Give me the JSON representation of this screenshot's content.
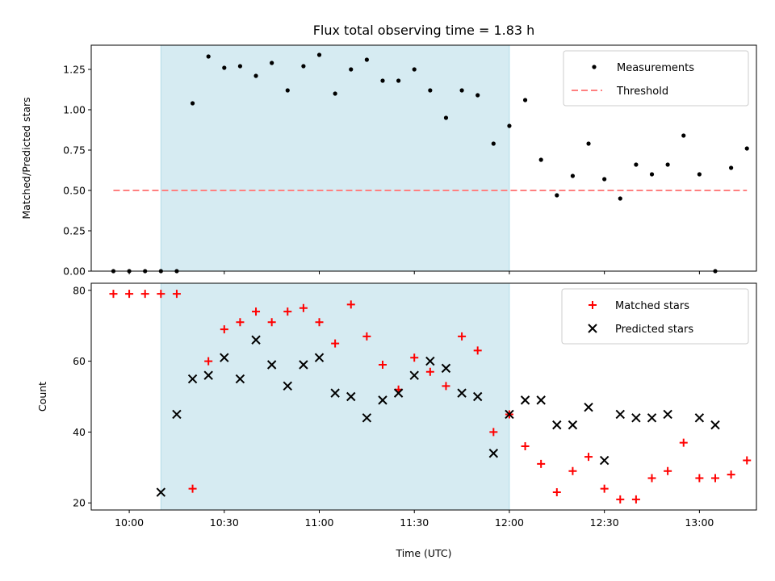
{
  "chart_data": [
    {
      "type": "scatter",
      "title": "Flux total observing time = 1.83 h",
      "ylabel": "Matched/Predicted stars",
      "xlabel": "",
      "xlim": [
        "09:48",
        "13:18"
      ],
      "ylim": [
        0,
        1.4
      ],
      "x_ticks": [
        "10:00",
        "10:30",
        "11:00",
        "11:30",
        "12:00",
        "12:30",
        "13:00"
      ],
      "y_ticks": [
        "0.00",
        "0.25",
        "0.50",
        "0.75",
        "1.00",
        "1.25"
      ],
      "shaded_interval": {
        "start": "10:10",
        "end": "12:00",
        "color": "#add8e6"
      },
      "legend_position": "top-right",
      "series": [
        {
          "name": "Measurements",
          "marker": "dot",
          "color": "#000000",
          "x": [
            "09:55",
            "10:00",
            "10:05",
            "10:10",
            "10:15",
            "10:20",
            "10:25",
            "10:30",
            "10:35",
            "10:40",
            "10:45",
            "10:50",
            "10:55",
            "11:00",
            "11:05",
            "11:10",
            "11:15",
            "11:20",
            "11:25",
            "11:30",
            "11:35",
            "11:40",
            "11:45",
            "11:50",
            "11:55",
            "12:00",
            "12:05",
            "12:10",
            "12:15",
            "12:20",
            "12:25",
            "12:30",
            "12:35",
            "12:40",
            "12:45",
            "12:50",
            "12:55",
            "13:00",
            "13:05",
            "13:10",
            "13:15"
          ],
          "y": [
            0,
            0,
            0,
            0,
            0,
            1.04,
            1.33,
            1.26,
            1.27,
            1.21,
            1.29,
            1.12,
            1.27,
            1.34,
            1.1,
            1.25,
            1.31,
            1.18,
            1.18,
            1.25,
            1.12,
            0.95,
            1.12,
            1.09,
            0.79,
            0.9,
            1.06,
            0.69,
            0.47,
            0.59,
            0.79,
            0.57,
            0.45,
            0.66,
            0.6,
            0.66,
            0.84,
            0.6,
            0.0,
            0.64,
            0.76
          ]
        },
        {
          "name": "Threshold",
          "marker": "dashed-line",
          "color": "#ff8080",
          "x": [
            "09:55",
            "13:15"
          ],
          "y": [
            0.5,
            0.5
          ]
        }
      ]
    },
    {
      "type": "scatter",
      "title": "",
      "ylabel": "Count",
      "xlabel": "Time (UTC)",
      "xlim": [
        "09:48",
        "13:18"
      ],
      "ylim": [
        18,
        82
      ],
      "x_ticks": [
        "10:00",
        "10:30",
        "11:00",
        "11:30",
        "12:00",
        "12:30",
        "13:00"
      ],
      "y_ticks": [
        "20",
        "40",
        "60",
        "80"
      ],
      "shaded_interval": {
        "start": "10:10",
        "end": "12:00",
        "color": "#add8e6"
      },
      "legend_position": "top-right",
      "series": [
        {
          "name": "Matched stars",
          "marker": "plus",
          "color": "#ff0000",
          "x": [
            "09:55",
            "10:00",
            "10:05",
            "10:10",
            "10:15",
            "10:20",
            "10:25",
            "10:30",
            "10:35",
            "10:40",
            "10:45",
            "10:50",
            "10:55",
            "11:00",
            "11:05",
            "11:10",
            "11:15",
            "11:20",
            "11:25",
            "11:30",
            "11:35",
            "11:40",
            "11:45",
            "11:50",
            "11:55",
            "12:00",
            "12:05",
            "12:10",
            "12:15",
            "12:20",
            "12:25",
            "12:30",
            "12:35",
            "12:40",
            "12:45",
            "12:50",
            "12:55",
            "13:00",
            "13:05",
            "13:10",
            "13:15"
          ],
          "y": [
            79,
            79,
            79,
            79,
            79,
            24,
            60,
            69,
            71,
            74,
            71,
            74,
            75,
            71,
            65,
            76,
            67,
            59,
            52,
            61,
            57,
            53,
            67,
            63,
            40,
            45,
            36,
            31,
            23,
            29,
            33,
            24,
            21,
            21,
            27,
            29,
            37,
            27,
            27,
            28,
            32
          ]
        },
        {
          "name": "Predicted stars",
          "marker": "x",
          "color": "#000000",
          "x": [
            "10:10",
            "10:15",
            "10:20",
            "10:25",
            "10:30",
            "10:35",
            "10:40",
            "10:45",
            "10:50",
            "10:55",
            "11:00",
            "11:05",
            "11:10",
            "11:15",
            "11:20",
            "11:25",
            "11:30",
            "11:35",
            "11:40",
            "11:45",
            "11:50",
            "11:55",
            "12:00",
            "12:05",
            "12:10",
            "12:15",
            "12:20",
            "12:25",
            "12:30",
            "12:35",
            "12:40",
            "12:45",
            "12:50",
            "13:00",
            "13:05"
          ],
          "y": [
            23,
            45,
            55,
            56,
            61,
            55,
            66,
            59,
            53,
            59,
            61,
            51,
            50,
            44,
            49,
            51,
            56,
            60,
            58,
            51,
            50,
            34,
            45,
            49,
            49,
            42,
            42,
            47,
            32,
            45,
            44,
            44,
            45,
            44,
            42
          ]
        }
      ]
    }
  ]
}
